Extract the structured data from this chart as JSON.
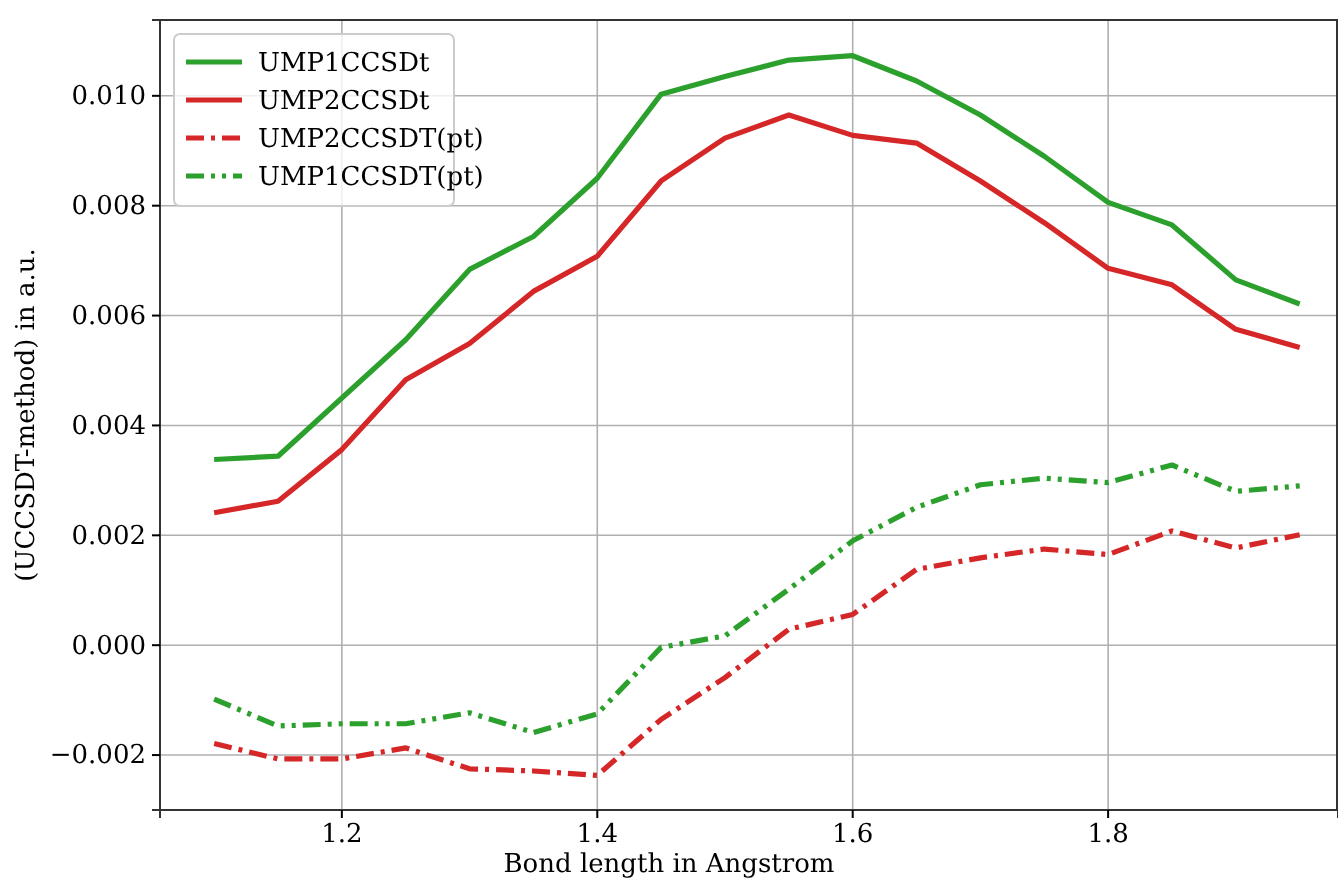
{
  "chart_data": {
    "type": "line",
    "xlabel": "Bond length in Angstrom",
    "ylabel": "(UCCSDT-method) in a.u.",
    "x": [
      1.1,
      1.15,
      1.2,
      1.25,
      1.3,
      1.35,
      1.4,
      1.45,
      1.5,
      1.55,
      1.6,
      1.65,
      1.7,
      1.75,
      1.8,
      1.85,
      1.9,
      1.95
    ],
    "series": [
      {
        "name": "UMP1CCSDt",
        "color": "#2ca02c",
        "line_style": "solid",
        "values": [
          0.00338,
          0.00344,
          0.0045,
          0.00556,
          0.00684,
          0.00744,
          0.0085,
          0.01003,
          0.01035,
          0.01065,
          0.01073,
          0.01027,
          0.00965,
          0.0089,
          0.00806,
          0.00765,
          0.00665,
          0.00621
        ]
      },
      {
        "name": "UMP2CCSDt",
        "color": "#d62728",
        "line_style": "solid",
        "values": [
          0.00241,
          0.00262,
          0.00356,
          0.00483,
          0.00549,
          0.00644,
          0.00708,
          0.00845,
          0.00923,
          0.00965,
          0.00928,
          0.00914,
          0.00845,
          0.00769,
          0.00686,
          0.00656,
          0.00575,
          0.00542
        ]
      },
      {
        "name": "UMP2CCSDT(pt)",
        "color": "#d62728",
        "line_style": "dashdot",
        "values": [
          -0.00179,
          -0.00207,
          -0.00207,
          -0.00187,
          -0.00225,
          -0.00229,
          -0.00237,
          -0.00135,
          -0.00059,
          0.00029,
          0.00056,
          0.00138,
          0.00159,
          0.00175,
          0.00165,
          0.00208,
          0.00177,
          0.00201
        ]
      },
      {
        "name": "UMP1CCSDT(pt)",
        "color": "#2ca02c",
        "line_style": "dashdotdot",
        "values": [
          -0.00098,
          -0.00147,
          -0.00143,
          -0.00143,
          -0.00123,
          -0.00159,
          -0.00125,
          -4e-05,
          0.00017,
          0.00102,
          0.0019,
          0.00251,
          0.00292,
          0.00304,
          0.00296,
          0.00328,
          0.0028,
          0.0029
        ]
      }
    ],
    "xlim": [
      1.0576,
      1.98
    ],
    "ylim": [
      -0.003,
      0.01138
    ],
    "xticks": [
      1.2,
      1.4,
      1.6,
      1.8
    ],
    "yticks": [
      {
        "value": -0.002,
        "label": "−0.002"
      },
      {
        "value": 0,
        "label": "0.000"
      },
      {
        "value": 0.002,
        "label": "0.002"
      },
      {
        "value": 0.004,
        "label": "0.004"
      },
      {
        "value": 0.006,
        "label": "0.006"
      },
      {
        "value": 0.008,
        "label": "0.008"
      },
      {
        "value": 0.01,
        "label": "0.010"
      }
    ],
    "grid": true,
    "legend": "top left"
  }
}
